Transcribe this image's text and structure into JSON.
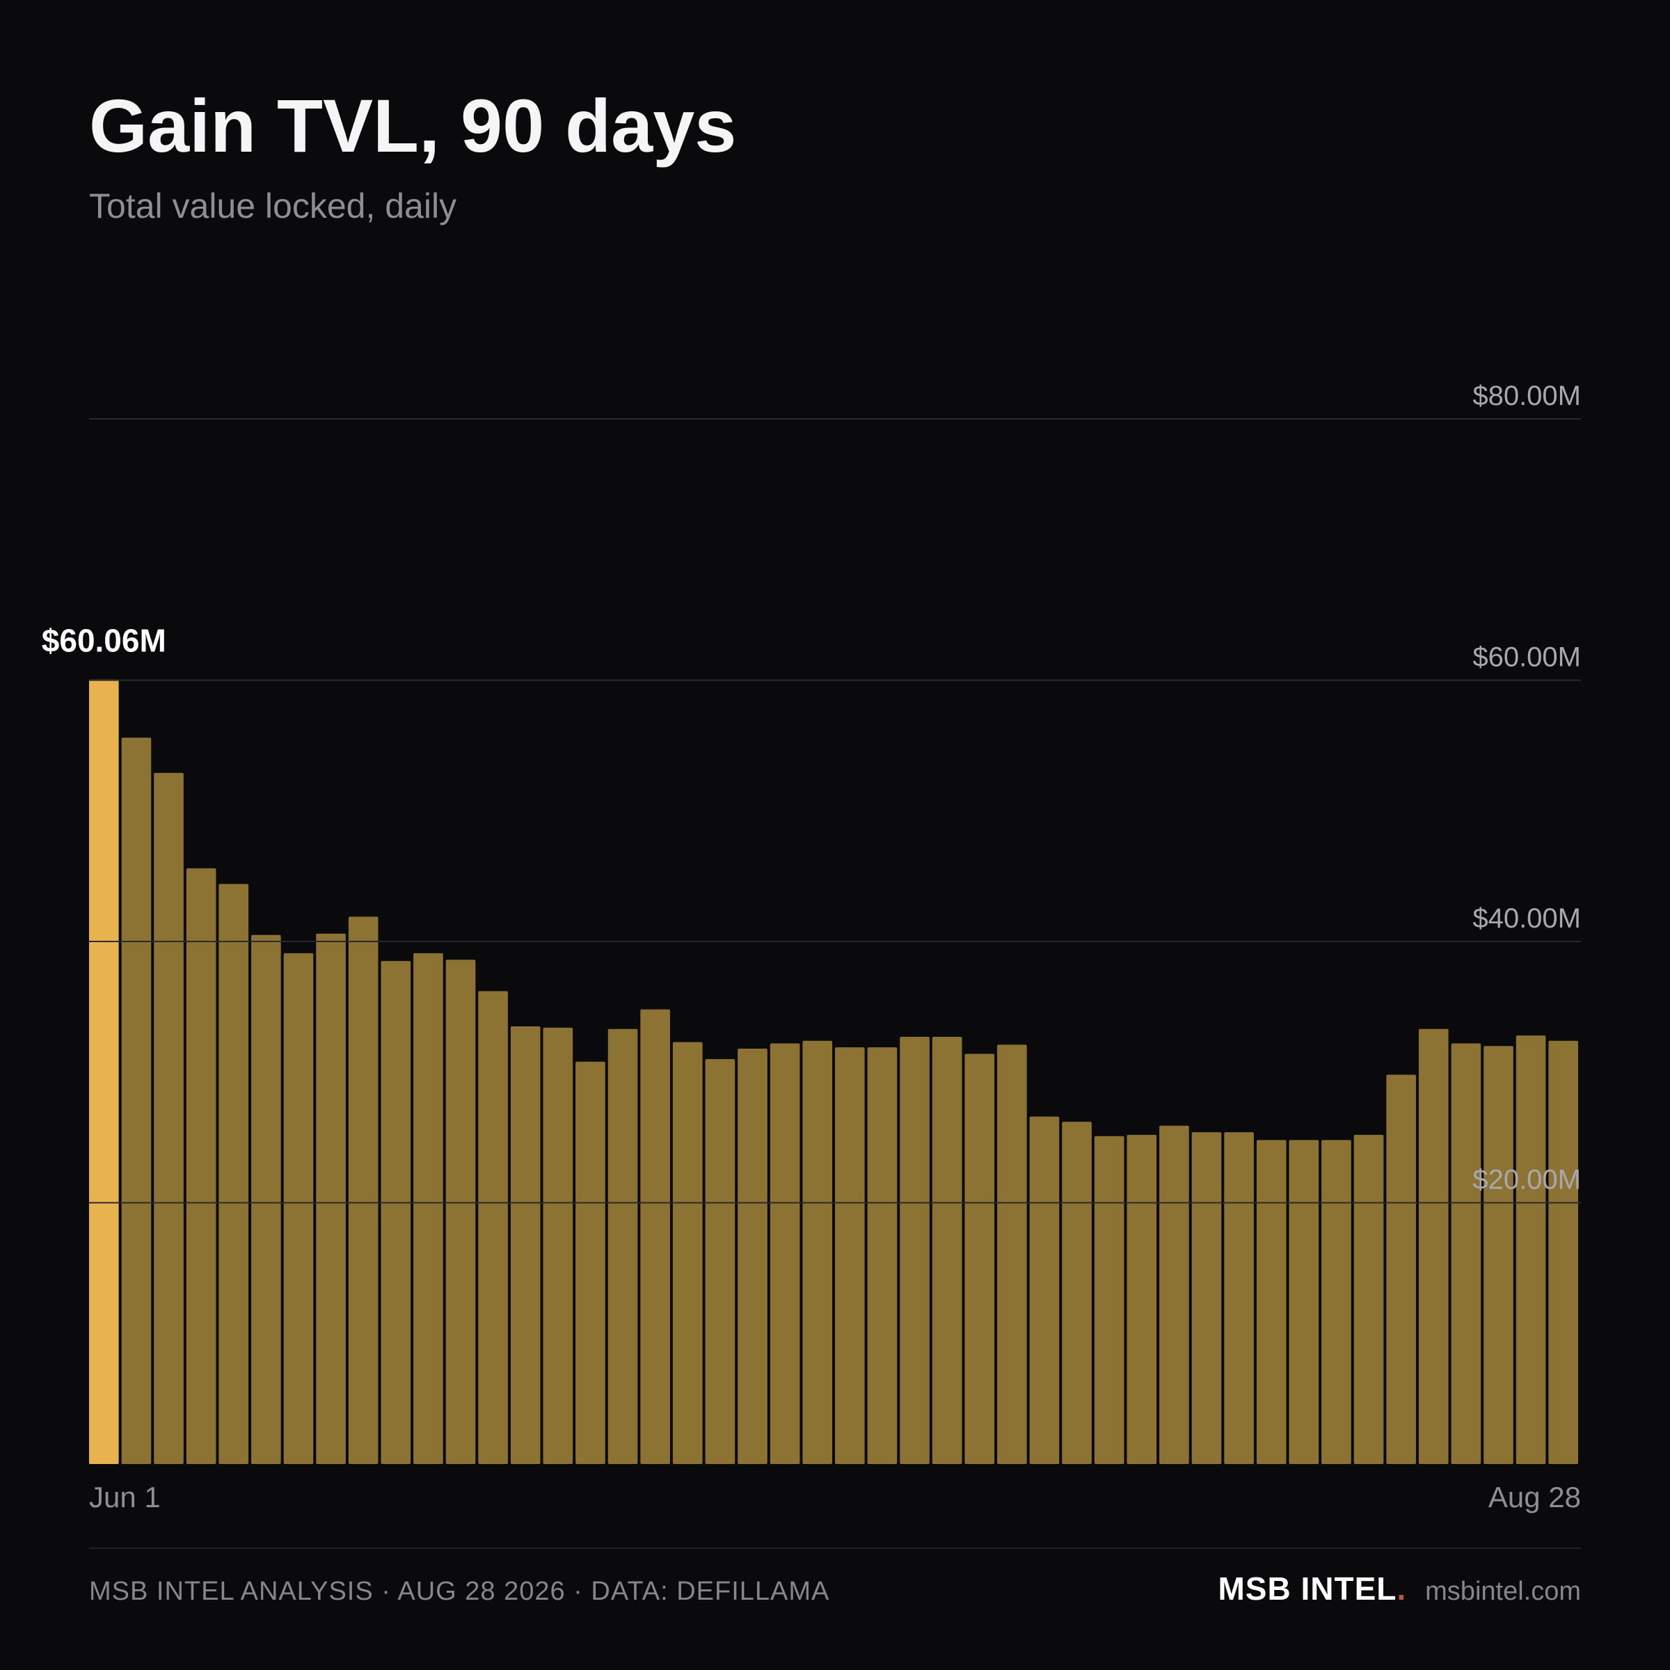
{
  "header": {
    "title": "Gain TVL, 90 days",
    "subtitle": "Total value locked, daily"
  },
  "footer": {
    "credit": "MSB INTEL ANALYSIS · AUG 28 2026 · DATA: DEFILLAMA",
    "brand": "MSB INTEL",
    "brand_dot": ".",
    "site": "msbintel.com"
  },
  "colors": {
    "background": "#0a0a0c",
    "bar": "#8c7333",
    "bar_highlight": "#e8b34f",
    "gridline": "#2a2a2e",
    "brand_dot": "#c0553a"
  },
  "chart_data": {
    "type": "bar",
    "title": "Gain TVL, 90 days",
    "subtitle": "Total value locked, daily",
    "x_start_label": "Jun 1",
    "x_end_label": "Aug 28",
    "yticks": [
      20,
      40,
      60,
      80
    ],
    "ytick_labels": [
      "$20.00M",
      "$40.00M",
      "$60.00M",
      "$80.00M"
    ],
    "ylim": [
      0,
      80
    ],
    "grid": true,
    "y_unit": "$M",
    "highlight": {
      "index": 0,
      "label": "$60.06M"
    },
    "values": [
      60.06,
      55.6,
      52.9,
      45.6,
      44.4,
      40.5,
      39.1,
      40.6,
      41.9,
      38.5,
      39.1,
      38.6,
      36.2,
      33.5,
      33.4,
      30.8,
      33.3,
      34.8,
      32.3,
      31.0,
      31.8,
      32.2,
      32.4,
      31.9,
      31.9,
      32.7,
      32.7,
      31.4,
      32.1,
      26.6,
      26.2,
      25.1,
      25.2,
      25.9,
      25.4,
      25.4,
      24.8,
      24.8,
      24.8,
      25.2,
      29.8,
      33.3,
      32.2,
      32.0,
      32.8,
      32.4
    ]
  }
}
